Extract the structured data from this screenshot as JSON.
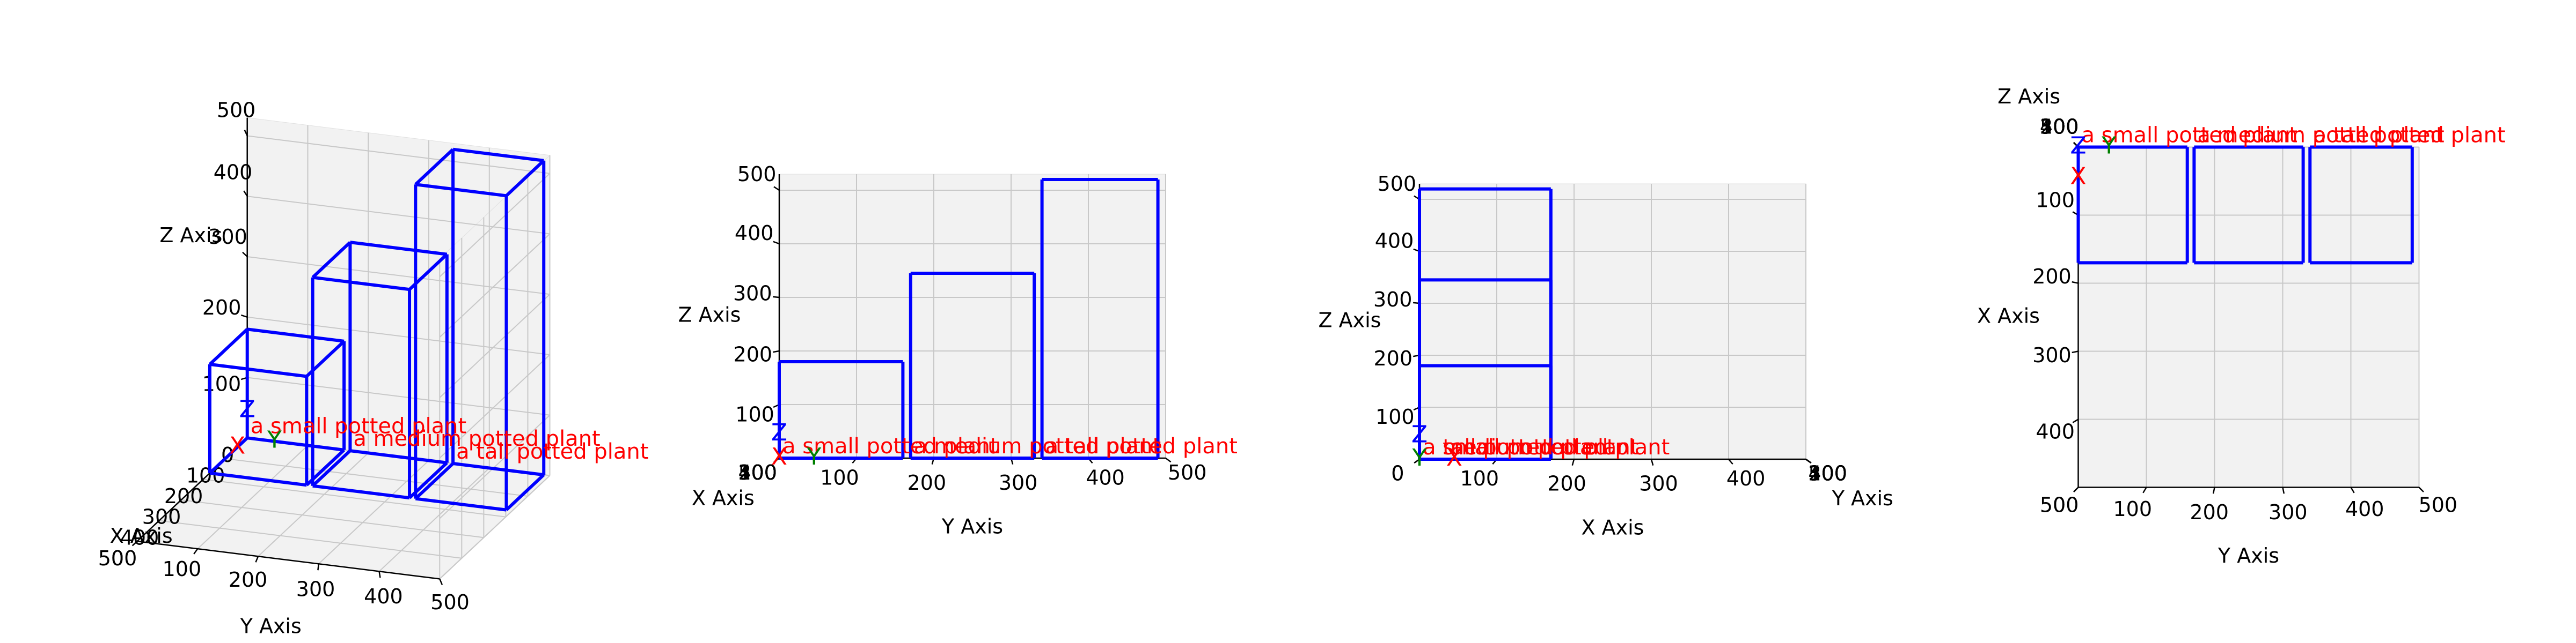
{
  "scene": {
    "frame_labels": [
      {
        "text": "X",
        "color": "#ff0000"
      },
      {
        "text": "Y",
        "color": "#008000"
      },
      {
        "text": "Z",
        "color": "#0000ff"
      }
    ],
    "box_color": "#0000ff",
    "label_color": "#ff0000",
    "objects": [
      {
        "label": "a small potted plant",
        "x": [
          0,
          170
        ],
        "y": [
          0,
          160
        ],
        "z": [
          0,
          180
        ]
      },
      {
        "label": "a medium potted plant",
        "x": [
          0,
          170
        ],
        "y": [
          170,
          330
        ],
        "z": [
          0,
          345
        ]
      },
      {
        "label": "a tall potted plant",
        "x": [
          0,
          170
        ],
        "y": [
          340,
          490
        ],
        "z": [
          0,
          520
        ]
      }
    ]
  },
  "chart_data": [
    {
      "type": "box3d",
      "xlabel": "X Axis",
      "ylabel": "Y Axis",
      "zlabel": "Z Axis",
      "xlim": [
        0,
        500
      ],
      "ylim": [
        0,
        500
      ],
      "zlim": [
        0,
        530
      ],
      "xticks": [
        0,
        100,
        200,
        300,
        400,
        500
      ],
      "yticks": [
        0,
        100,
        200,
        300,
        400,
        500
      ],
      "zticks": [
        0,
        100,
        200,
        300,
        400,
        500
      ]
    },
    {
      "type": "box3d",
      "xlabel": "X Axis",
      "ylabel": "Y Axis",
      "zlabel": "Z Axis",
      "xlim": [
        0,
        500
      ],
      "ylim": [
        0,
        500
      ],
      "zlim": [
        0,
        530
      ],
      "xticks": [
        0,
        100,
        200,
        300,
        400,
        500
      ],
      "yticks": [
        0,
        100,
        200,
        300,
        400,
        500
      ],
      "zticks": [
        0,
        100,
        200,
        300,
        400,
        500
      ]
    },
    {
      "type": "box3d",
      "xlabel": "X Axis",
      "ylabel": "Y Axis",
      "zlabel": "Z Axis",
      "xlim": [
        0,
        500
      ],
      "ylim": [
        0,
        500
      ],
      "zlim": [
        0,
        530
      ],
      "xticks": [
        0,
        100,
        200,
        300,
        400,
        500
      ],
      "yticks": [
        0,
        100,
        200,
        300,
        400,
        500
      ],
      "zticks": [
        0,
        100,
        200,
        300,
        400,
        500
      ]
    },
    {
      "type": "box3d",
      "xlabel": "X Axis",
      "ylabel": "Y Axis",
      "zlabel": "Z Axis",
      "xlim": [
        0,
        500
      ],
      "ylim": [
        0,
        500
      ],
      "zlim": [
        0,
        530
      ],
      "xticks": [
        0,
        100,
        200,
        300,
        400,
        500
      ],
      "yticks": [
        0,
        100,
        200,
        300,
        400,
        500
      ],
      "zticks": [
        0,
        100,
        200,
        300,
        400,
        500
      ]
    }
  ]
}
